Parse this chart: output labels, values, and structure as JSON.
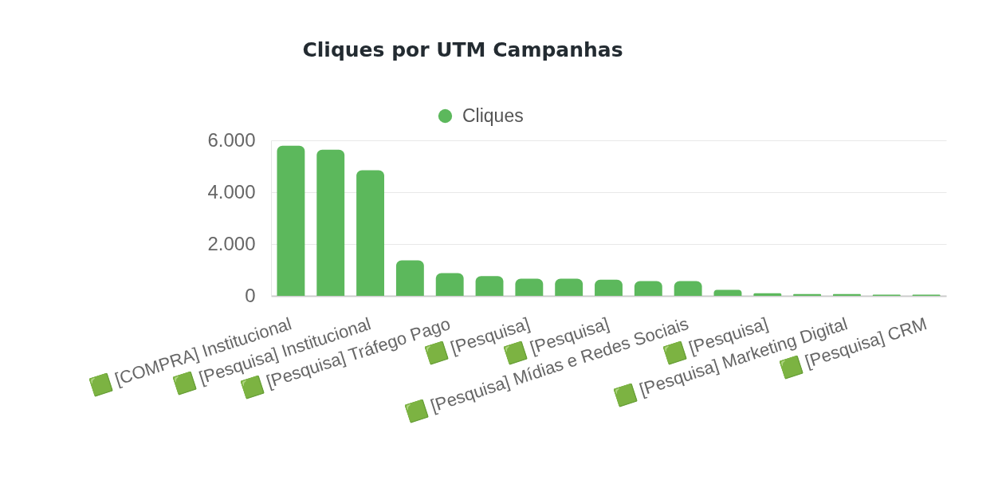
{
  "chart_data": {
    "type": "bar",
    "title": "Cliques por UTM Campanhas",
    "categories": [
      "🟩 [COMPRA] Institucional",
      null,
      "🟩 [Pesquisa] Institucional",
      null,
      "🟩 [Pesquisa] Tráfego Pago",
      null,
      "🟩 [Pesquisa]",
      null,
      "🟩 [Pesquisa]",
      null,
      "🟩 [Pesquisa] Mídias e Redes Sociais",
      null,
      "🟩 [Pesquisa]",
      null,
      "🟩 [Pesquisa] Marketing Digital",
      null,
      "🟩 [Pesquisa] CRM"
    ],
    "series": [
      {
        "name": "Cliques",
        "color": "#5cb85c",
        "values": [
          5790,
          5640,
          4850,
          1370,
          880,
          760,
          660,
          660,
          620,
          570,
          570,
          230,
          100,
          70,
          70,
          50,
          50
        ]
      }
    ],
    "ylim": [
      0,
      6000
    ],
    "yticks": [
      0,
      {
        "value": 2000,
        "label": "2.000"
      },
      {
        "value": 4000,
        "label": "4.000"
      },
      {
        "value": 6000,
        "label": "6.000"
      }
    ],
    "grid": "y",
    "legend": "top"
  }
}
